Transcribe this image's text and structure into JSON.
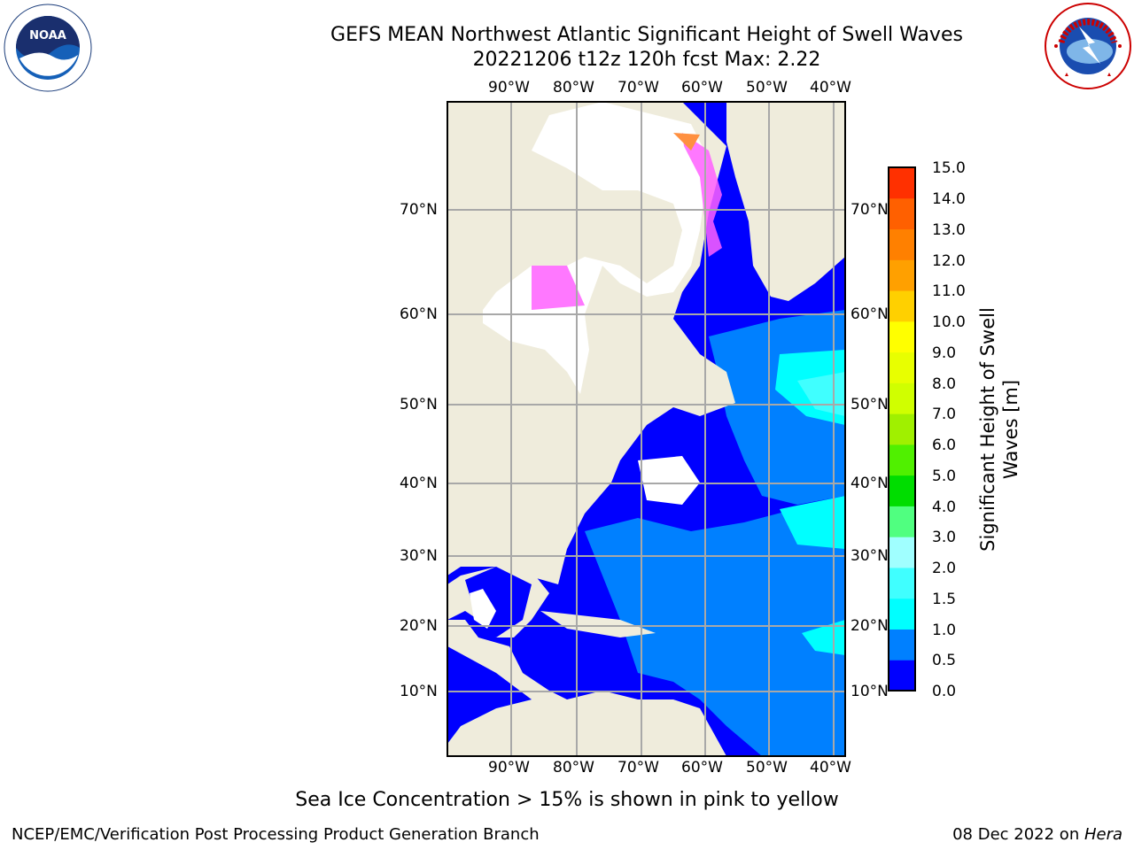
{
  "title_line1": "GEFS MEAN Northwest Atlantic Significant Height of Swell Waves",
  "title_line2": "20221206 t12z 120h fcst   Max: 2.22",
  "lon_labels": [
    "90°W",
    "80°W",
    "70°W",
    "60°W",
    "50°W",
    "40°W"
  ],
  "lat_labels": [
    "70°N",
    "60°N",
    "50°N",
    "40°N",
    "30°N",
    "20°N",
    "10°N"
  ],
  "colorbar": {
    "title_line1": "Significant Height of Swell",
    "title_line2": "Waves [m]",
    "ticks": [
      "15.0",
      "14.0",
      "13.0",
      "12.0",
      "11.0",
      "10.0",
      "9.0",
      "8.0",
      "7.0",
      "6.0",
      "5.0",
      "4.0",
      "3.0",
      "2.0",
      "1.5",
      "1.0",
      "0.5",
      "0.0"
    ],
    "colors": [
      "#0000ff",
      "#0080ff",
      "#00ffff",
      "#40ffff",
      "#a0ffff",
      "#50ff80",
      "#00dd00",
      "#50f000",
      "#a0f000",
      "#d0ff00",
      "#e8ff00",
      "#ffff00",
      "#ffd000",
      "#ffa000",
      "#ff8000",
      "#ff6000",
      "#ff3000"
    ]
  },
  "colors": {
    "land": "#efecdc",
    "ice": "#ffffff",
    "swell_low": "#0000ff",
    "swell_mid": "#0080ff",
    "swell_high": "#00ffff",
    "ice_edge": "#ff60ff"
  },
  "footnote": "Sea Ice Concentration > 15% is shown in pink to yellow",
  "credit": "NCEP/EMC/Verification Post Processing Product Generation Branch",
  "date_text": "08 Dec 2022 on ",
  "date_machine": "Hera",
  "logos": {
    "noaa": "NOAA",
    "nws": "NATIONAL WEATHER SERVICE"
  }
}
